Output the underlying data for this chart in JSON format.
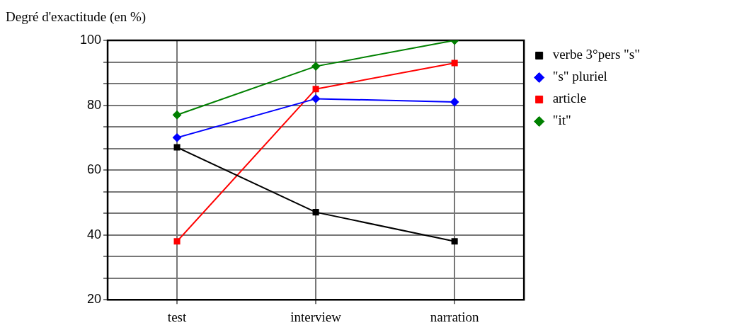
{
  "chart_data": {
    "type": "line",
    "ylabel": "Degré d'exactitude (en %)",
    "categories": [
      "test",
      "interview",
      "narration"
    ],
    "ylim": [
      20,
      100
    ],
    "yticks": [
      20,
      {
        "value": 26.67,
        "label": null
      },
      {
        "value": 33.33,
        "label": null
      },
      40,
      {
        "value": 46.67,
        "label": null
      },
      {
        "value": 53.33,
        "label": null
      },
      60,
      {
        "value": 66.67,
        "label": null
      },
      {
        "value": 73.33,
        "label": null
      },
      80,
      {
        "value": 86.67,
        "label": null
      },
      {
        "value": 93.33,
        "label": null
      },
      100
    ],
    "grid": true,
    "legend": "right",
    "line_style": "solid",
    "series": [
      {
        "name": "verbe 3°pers \"s\"",
        "color": "#000000",
        "marker": "square",
        "values": [
          67,
          47,
          38
        ]
      },
      {
        "name": "\"s\" pluriel",
        "color": "#0000ff",
        "marker": "diamond",
        "values": [
          70,
          82,
          81
        ]
      },
      {
        "name": "article",
        "color": "#ff0000",
        "marker": "square",
        "values": [
          38,
          85,
          93
        ]
      },
      {
        "name": "\"it\"",
        "color": "#008000",
        "marker": "diamond",
        "values": [
          77,
          92,
          100
        ]
      }
    ]
  }
}
